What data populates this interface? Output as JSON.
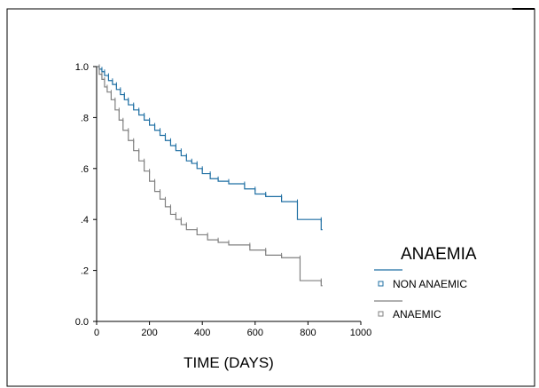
{
  "chart_data": {
    "type": "line",
    "step": true,
    "xlabel": "TIME (DAYS)",
    "ylabel": "",
    "xlim": [
      0,
      1000
    ],
    "ylim": [
      0,
      1
    ],
    "x_ticks": [
      0,
      200,
      400,
      600,
      800,
      1000
    ],
    "x_tick_labels": [
      "0",
      "200",
      "400",
      "600",
      "800",
      "1000"
    ],
    "y_ticks": [
      0,
      0.2,
      0.4,
      0.6,
      0.8,
      1.0
    ],
    "y_tick_labels": [
      "0.0",
      ".2",
      ".4",
      ".6",
      ".8",
      "1.0"
    ],
    "grid": false,
    "legend": {
      "title": "ANAEMIA",
      "placement": "right",
      "entries": [
        "NON ANAEMIC",
        "ANAEMIC"
      ]
    },
    "series": [
      {
        "name": "NON ANAEMIC",
        "color": "#1f6fa3",
        "censor_marks": true,
        "x": [
          0,
          10,
          20,
          30,
          45,
          60,
          75,
          90,
          105,
          120,
          140,
          160,
          180,
          200,
          220,
          240,
          260,
          280,
          300,
          320,
          340,
          360,
          380,
          400,
          430,
          460,
          500,
          560,
          600,
          640,
          700,
          760,
          850,
          855
        ],
        "y": [
          1.0,
          0.99,
          0.98,
          0.965,
          0.945,
          0.93,
          0.91,
          0.89,
          0.87,
          0.85,
          0.83,
          0.81,
          0.79,
          0.77,
          0.75,
          0.73,
          0.71,
          0.69,
          0.67,
          0.65,
          0.63,
          0.62,
          0.6,
          0.58,
          0.56,
          0.55,
          0.54,
          0.52,
          0.5,
          0.49,
          0.47,
          0.4,
          0.36,
          0.36
        ]
      },
      {
        "name": "ANAEMIC",
        "color": "#808080",
        "censor_marks": true,
        "x": [
          0,
          10,
          20,
          30,
          40,
          55,
          70,
          85,
          100,
          120,
          140,
          160,
          180,
          200,
          220,
          240,
          260,
          280,
          300,
          320,
          340,
          380,
          420,
          460,
          500,
          580,
          640,
          700,
          770,
          850,
          855
        ],
        "y": [
          1.0,
          0.97,
          0.95,
          0.92,
          0.9,
          0.87,
          0.83,
          0.79,
          0.75,
          0.71,
          0.67,
          0.63,
          0.59,
          0.55,
          0.51,
          0.48,
          0.45,
          0.42,
          0.4,
          0.38,
          0.36,
          0.34,
          0.32,
          0.31,
          0.3,
          0.28,
          0.26,
          0.25,
          0.16,
          0.14,
          0.14
        ]
      }
    ]
  }
}
